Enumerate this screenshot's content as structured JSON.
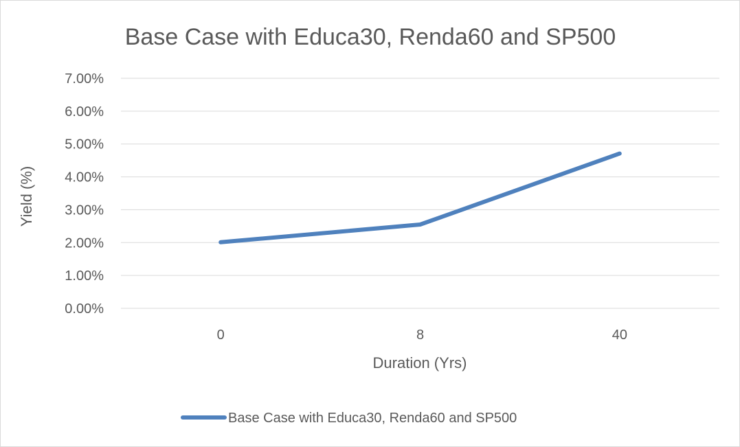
{
  "chart_data": {
    "type": "line",
    "title": "Base Case with Educa30, Renda60 and SP500",
    "xlabel": "Duration (Yrs)",
    "ylabel": "Yield (%)",
    "categories": [
      "0",
      "8",
      "40"
    ],
    "series": [
      {
        "name": "Base Case with Educa30, Renda60 and SP500",
        "values": [
          0.0201,
          0.0255,
          0.0471
        ],
        "color": "#4f81bd"
      }
    ],
    "ylim": [
      0,
      0.07
    ],
    "yticks": [
      "0.00%",
      "1.00%",
      "2.00%",
      "3.00%",
      "4.00%",
      "5.00%",
      "6.00%",
      "7.00%"
    ],
    "grid": true,
    "legend_position": "bottom"
  }
}
